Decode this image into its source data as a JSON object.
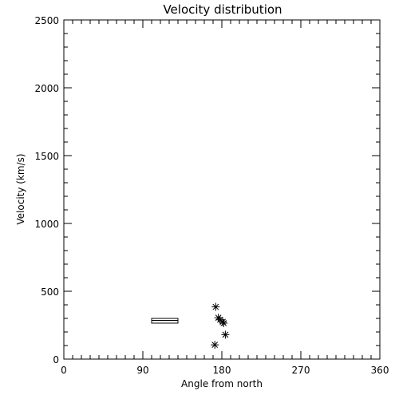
{
  "chart_data": {
    "type": "scatter",
    "title": "Velocity distribution",
    "xlabel": "Angle from north",
    "ylabel": "Velocity (km/s)",
    "xlim": [
      0,
      360
    ],
    "ylim": [
      0,
      2500
    ],
    "x_ticks": [
      0,
      90,
      180,
      270,
      360
    ],
    "x_tick_labels": [
      "0",
      "90",
      "180",
      "270",
      "360"
    ],
    "y_ticks": [
      0,
      500,
      1000,
      1500,
      2000,
      2500
    ],
    "y_tick_labels": [
      "0",
      "500",
      "1000",
      "1500",
      "2000",
      "2500"
    ],
    "x_minor_step": 10,
    "y_minor_step": 100,
    "grid": false,
    "marker": "asterisk",
    "points": [
      {
        "x": 173,
        "y": 385
      },
      {
        "x": 176,
        "y": 305
      },
      {
        "x": 178,
        "y": 290
      },
      {
        "x": 181,
        "y": 275
      },
      {
        "x": 182,
        "y": 265
      },
      {
        "x": 184,
        "y": 180
      },
      {
        "x": 172,
        "y": 105
      }
    ],
    "range_box": {
      "x_start": 100,
      "x_end": 130,
      "y_low": 265,
      "y_high": 300,
      "y_mid": 285
    }
  }
}
